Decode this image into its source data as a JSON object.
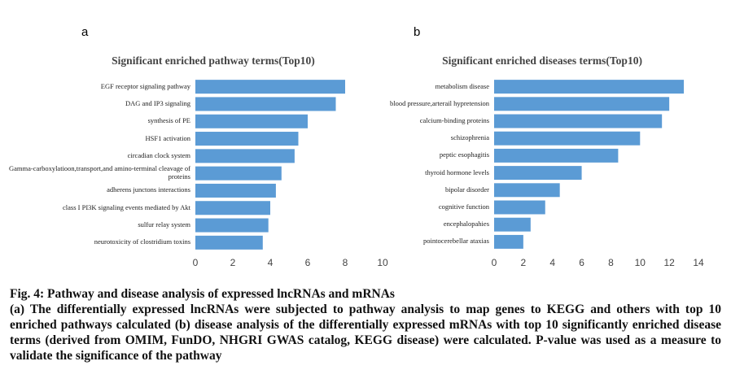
{
  "chart_data": [
    {
      "type": "barh",
      "panel_label": "a",
      "title": "Significant  enriched pathway terms(Top10)",
      "categories": [
        "EGF receptor signaling pathway",
        "DAG and IP3 signaling",
        "synthesis of PE",
        "HSF1 activation",
        "circadian clock system",
        "Gamma-carboxylatioon,transport,and amino-terminal cleavage of proteins",
        "adherens junctons interactions",
        "class I PI3K signaling events mediated by Akt",
        "sulfur relay system",
        "neurotoxicity of clostridium toxins"
      ],
      "values": [
        8.0,
        7.5,
        6.0,
        5.5,
        5.3,
        4.6,
        4.3,
        4.0,
        3.9,
        3.6
      ],
      "color": "#5b9bd5",
      "xlim": [
        0,
        10
      ],
      "xticks": [
        0,
        2,
        4,
        6,
        8,
        10
      ]
    },
    {
      "type": "barh",
      "panel_label": "b",
      "title": "Significant  enriched diseases terms(Top10)",
      "categories": [
        "metabolism disease",
        "blood pressure,arterail hypretension",
        "calcium-binding proteins",
        "schizophrenia",
        "peptic esophagitis",
        "thyroid hormone levels",
        "bipolar disorder",
        "cognitive function",
        "encephalopahies",
        "pointocerebellar ataxias"
      ],
      "values": [
        13.0,
        12.0,
        11.5,
        10.0,
        8.5,
        6.0,
        4.5,
        3.5,
        2.5,
        2.0
      ],
      "color": "#5b9bd5",
      "xlim": [
        0,
        14
      ],
      "xticks": [
        0,
        2,
        4,
        6,
        8,
        10,
        12,
        14
      ]
    }
  ],
  "caption": {
    "title": "Fig. 4: Pathway and disease analysis of expressed lncRNAs and mRNAs",
    "text": "(a) The differentially expressed lncRNAs were subjected to pathway analysis to map genes to KEGG and others with top 10 enriched pathways calculated (b) disease analysis of the differentially expressed mRNAs with top 10 significantly enriched disease terms (derived from OMIM, FunDO, NHGRI GWAS catalog, KEGG disease) were calculated. P-value was used as a measure to validate the significance of the pathway"
  }
}
